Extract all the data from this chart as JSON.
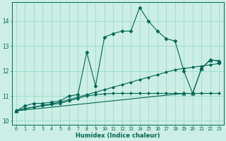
{
  "bg_color": "#cceee4",
  "grid_color": "#99ddcc",
  "line_color": "#006655",
  "xlabel": "Humidex (Indice chaleur)",
  "xlim": [
    -0.5,
    23.5
  ],
  "ylim": [
    9.85,
    14.75
  ],
  "yticks": [
    10,
    11,
    12,
    13,
    14
  ],
  "xticks": [
    0,
    1,
    2,
    3,
    4,
    5,
    6,
    7,
    8,
    9,
    10,
    11,
    12,
    13,
    14,
    15,
    16,
    17,
    18,
    19,
    20,
    21,
    22,
    23
  ],
  "series1_x": [
    0,
    1,
    2,
    3,
    4,
    5,
    6,
    7,
    8,
    9,
    10,
    11,
    12,
    13,
    14,
    15,
    16,
    17,
    18,
    19,
    20,
    21,
    22,
    23
  ],
  "series1_y": [
    10.4,
    10.6,
    10.7,
    10.7,
    10.75,
    10.8,
    11.0,
    11.05,
    12.75,
    11.4,
    13.35,
    13.5,
    13.6,
    13.6,
    14.55,
    14.0,
    13.6,
    13.3,
    13.2,
    12.0,
    11.1,
    12.1,
    12.45,
    12.4
  ],
  "series2_x": [
    0,
    1,
    2,
    3,
    4,
    5,
    6,
    7,
    8,
    9,
    10,
    11,
    12,
    13,
    14,
    15,
    16,
    17,
    18,
    19,
    20,
    21,
    22,
    23
  ],
  "series2_y": [
    10.4,
    10.5,
    10.55,
    10.6,
    10.65,
    10.7,
    10.8,
    10.9,
    11.0,
    11.05,
    11.08,
    11.1,
    11.1,
    11.1,
    11.1,
    11.1,
    11.1,
    11.1,
    11.1,
    11.1,
    11.1,
    11.1,
    11.1,
    11.1
  ],
  "series3_x": [
    0,
    1,
    2,
    3,
    4,
    5,
    6,
    7,
    8,
    9,
    10,
    11,
    12,
    13,
    14,
    15,
    16,
    17,
    18,
    19,
    20,
    21,
    22,
    23
  ],
  "series3_y": [
    10.4,
    10.48,
    10.55,
    10.62,
    10.68,
    10.75,
    10.85,
    10.95,
    11.05,
    11.15,
    11.25,
    11.35,
    11.45,
    11.55,
    11.65,
    11.75,
    11.85,
    11.95,
    12.05,
    12.1,
    12.15,
    12.2,
    12.25,
    12.3
  ],
  "series4_x": [
    0,
    19,
    20,
    21,
    22,
    23
  ],
  "series4_y": [
    10.4,
    11.1,
    11.1,
    12.1,
    12.45,
    12.4
  ]
}
